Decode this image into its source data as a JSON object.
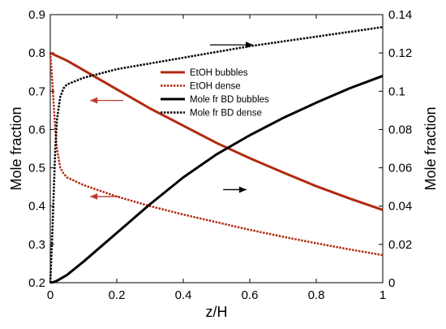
{
  "chart_data": {
    "type": "line",
    "xlabel": "z/H",
    "ylabel_left": "Mole fraction",
    "ylabel_right": "Mole fraction",
    "xlim": [
      0,
      1
    ],
    "ylim_left": [
      0.2,
      0.9
    ],
    "ylim_right": [
      0,
      0.14
    ],
    "x_ticks": [
      "0",
      "0.2",
      "0.4",
      "0.6",
      "0.8",
      "1"
    ],
    "y_left_ticks": [
      "0.2",
      "0.3",
      "0.4",
      "0.5",
      "0.6",
      "0.7",
      "0.8",
      "0.9"
    ],
    "y_right_ticks": [
      "0",
      "0.02",
      "0.04",
      "0.06",
      "0.08",
      "0.1",
      "0.12",
      "0.14"
    ],
    "grid": false,
    "legend_position": "upper-center",
    "series": [
      {
        "name": "EtOH bubbles",
        "axis": "left",
        "color": "#b22a10",
        "style": "solid",
        "x": [
          0,
          0.05,
          0.1,
          0.2,
          0.3,
          0.4,
          0.5,
          0.6,
          0.7,
          0.8,
          0.9,
          1.0
        ],
        "y": [
          0.8,
          0.78,
          0.755,
          0.705,
          0.655,
          0.61,
          0.565,
          0.525,
          0.488,
          0.452,
          0.42,
          0.39
        ]
      },
      {
        "name": "EtOH dense",
        "axis": "left",
        "color": "#b22a10",
        "style": "dotted",
        "x": [
          0,
          0.005,
          0.01,
          0.015,
          0.02,
          0.03,
          0.04,
          0.05,
          0.1,
          0.2,
          0.3,
          0.4,
          0.5,
          0.6,
          0.7,
          0.8,
          0.9,
          1.0
        ],
        "y": [
          0.8,
          0.74,
          0.67,
          0.6,
          0.55,
          0.5,
          0.485,
          0.475,
          0.455,
          0.425,
          0.4,
          0.378,
          0.358,
          0.338,
          0.32,
          0.303,
          0.287,
          0.272
        ]
      },
      {
        "name": "Mole fr BD bubbles",
        "axis": "right",
        "color": "#000000",
        "style": "solid",
        "x": [
          0,
          0.01,
          0.02,
          0.05,
          0.1,
          0.2,
          0.3,
          0.4,
          0.5,
          0.6,
          0.7,
          0.8,
          0.9,
          1.0
        ],
        "y": [
          0,
          0.0003,
          0.001,
          0.004,
          0.011,
          0.026,
          0.041,
          0.055,
          0.067,
          0.077,
          0.086,
          0.094,
          0.1015,
          0.108
        ]
      },
      {
        "name": "Mole fr BD dense",
        "axis": "right",
        "color": "#000000",
        "style": "dotted",
        "x": [
          0,
          0.005,
          0.01,
          0.015,
          0.02,
          0.03,
          0.04,
          0.05,
          0.1,
          0.2,
          0.3,
          0.4,
          0.5,
          0.6,
          0.7,
          0.8,
          0.9,
          1.0
        ],
        "y": [
          0,
          0.02,
          0.045,
          0.07,
          0.085,
          0.097,
          0.1015,
          0.1035,
          0.107,
          0.1115,
          0.1145,
          0.1175,
          0.1205,
          0.1235,
          0.126,
          0.1285,
          0.131,
          0.1335
        ]
      }
    ],
    "annotations": [
      {
        "type": "arrow",
        "direction": "right",
        "color": "#000000",
        "x": 0.48,
        "y_left": 0.821,
        "length": 0.13
      },
      {
        "type": "arrow",
        "direction": "left",
        "color": "#c0392b",
        "x": 0.12,
        "y_left": 0.676,
        "length": 0.1
      },
      {
        "type": "arrow",
        "direction": "right",
        "color": "#000000",
        "x": 0.52,
        "y_left": 0.443,
        "length": 0.07
      },
      {
        "type": "arrow",
        "direction": "left",
        "color": "#c0392b",
        "x": 0.12,
        "y_left": 0.425,
        "length": 0.09
      }
    ]
  }
}
